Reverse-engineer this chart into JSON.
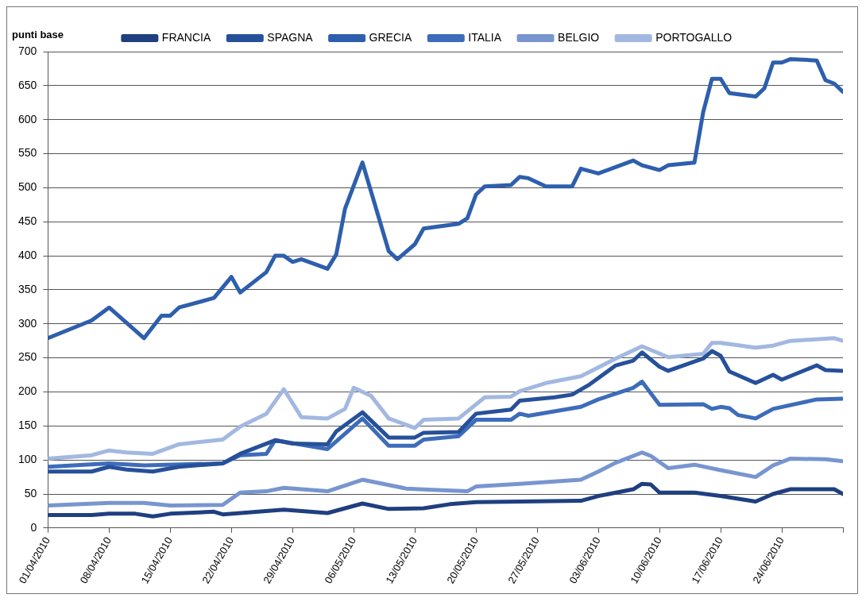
{
  "chart_data": {
    "type": "line",
    "ylabel": "punti base",
    "xlim": [
      "2010-04-01",
      "2010-07-01"
    ],
    "xticks": [
      {
        "value": "2010-04-01",
        "label": "01/04/2010"
      },
      {
        "value": "2010-04-08",
        "label": "08/04/2010"
      },
      {
        "value": "2010-04-15",
        "label": "15/04/2010"
      },
      {
        "value": "2010-04-22",
        "label": "22/04/2010"
      },
      {
        "value": "2010-04-29",
        "label": "29/04/2010"
      },
      {
        "value": "2010-05-06",
        "label": "06/05/2010"
      },
      {
        "value": "2010-05-13",
        "label": "13/05/2010"
      },
      {
        "value": "2010-05-20",
        "label": "20/05/2010"
      },
      {
        "value": "2010-05-27",
        "label": "27/05/2010"
      },
      {
        "value": "2010-06-03",
        "label": "03/06/2010"
      },
      {
        "value": "2010-06-10",
        "label": "10/06/2010"
      },
      {
        "value": "2010-06-17",
        "label": "17/06/2010"
      },
      {
        "value": "2010-06-24",
        "label": "24/06/2010"
      },
      {
        "value": "2010-07-01",
        "label": null
      }
    ],
    "ylim": [
      0,
      700
    ],
    "yticks": [
      0,
      50,
      100,
      150,
      200,
      250,
      300,
      350,
      400,
      450,
      500,
      550,
      600,
      650,
      700
    ],
    "grid": "y",
    "legend": "top",
    "marker": "none",
    "line_style": "solid",
    "series": [
      {
        "name": "FRANCIA",
        "color": "#1f3f7f",
        "x": [
          "2010-04-01",
          "2010-04-06",
          "2010-04-08",
          "2010-04-11",
          "2010-04-13",
          "2010-04-15",
          "2010-04-20",
          "2010-04-21",
          "2010-04-28",
          "2010-05-03",
          "2010-05-07",
          "2010-05-10",
          "2010-05-14",
          "2010-05-17",
          "2010-05-20",
          "2010-06-01",
          "2010-06-03",
          "2010-06-07",
          "2010-06-08",
          "2010-06-09",
          "2010-06-10",
          "2010-06-14",
          "2010-06-17",
          "2010-06-21",
          "2010-06-23",
          "2010-06-25",
          "2010-06-30",
          "2010-07-01"
        ],
        "values": [
          19,
          19,
          21,
          21,
          17,
          21,
          24,
          20,
          27,
          22,
          36,
          28,
          29,
          35,
          38,
          40,
          47,
          57,
          65,
          64,
          52,
          52,
          47,
          39,
          50,
          57,
          57,
          50
        ]
      },
      {
        "name": "SPAGNA",
        "color": "#27509a",
        "x": [
          "2010-04-01",
          "2010-04-06",
          "2010-04-08",
          "2010-04-10",
          "2010-04-13",
          "2010-04-16",
          "2010-04-21",
          "2010-04-23",
          "2010-04-27",
          "2010-04-29",
          "2010-05-03",
          "2010-05-04",
          "2010-05-07",
          "2010-05-10",
          "2010-05-13",
          "2010-05-14",
          "2010-05-18",
          "2010-05-20",
          "2010-05-24",
          "2010-05-25",
          "2010-05-29",
          "2010-05-31",
          "2010-06-02",
          "2010-06-05",
          "2010-06-07",
          "2010-06-08",
          "2010-06-10",
          "2010-06-11",
          "2010-06-15",
          "2010-06-16",
          "2010-06-17",
          "2010-06-18",
          "2010-06-21",
          "2010-06-23",
          "2010-06-24",
          "2010-06-28",
          "2010-06-29",
          "2010-07-01"
        ],
        "values": [
          83,
          83,
          90,
          86,
          83,
          90,
          95,
          109,
          129,
          124,
          123,
          142,
          170,
          133,
          133,
          140,
          141,
          168,
          174,
          187,
          192,
          196,
          211,
          239,
          246,
          258,
          237,
          231,
          249,
          260,
          253,
          230,
          213,
          225,
          218,
          239,
          232,
          231
        ]
      },
      {
        "name": "GRECIA",
        "color": "#2e5fad",
        "x": [
          "2010-04-01",
          "2010-04-06",
          "2010-04-08",
          "2010-04-12",
          "2010-04-14",
          "2010-04-15",
          "2010-04-16",
          "2010-04-20",
          "2010-04-22",
          "2010-04-23",
          "2010-04-26",
          "2010-04-27",
          "2010-04-28",
          "2010-04-29",
          "2010-04-30",
          "2010-05-03",
          "2010-05-04",
          "2010-05-05",
          "2010-05-07",
          "2010-05-10",
          "2010-05-11",
          "2010-05-13",
          "2010-05-14",
          "2010-05-18",
          "2010-05-19",
          "2010-05-20",
          "2010-05-21",
          "2010-05-24",
          "2010-05-25",
          "2010-05-26",
          "2010-05-28",
          "2010-05-31",
          "2010-06-01",
          "2010-06-03",
          "2010-06-07",
          "2010-06-08",
          "2010-06-10",
          "2010-06-11",
          "2010-06-14",
          "2010-06-15",
          "2010-06-16",
          "2010-06-17",
          "2010-06-18",
          "2010-06-21",
          "2010-06-22",
          "2010-06-23",
          "2010-06-24",
          "2010-06-25",
          "2010-06-28",
          "2010-06-29",
          "2010-06-30",
          "2010-07-01"
        ],
        "values": [
          279,
          305,
          324,
          279,
          312,
          312,
          324,
          338,
          369,
          346,
          376,
          400,
          400,
          391,
          395,
          381,
          402,
          469,
          537,
          407,
          395,
          417,
          440,
          447,
          455,
          490,
          502,
          504,
          516,
          514,
          502,
          502,
          528,
          521,
          540,
          533,
          526,
          533,
          537,
          611,
          660,
          660,
          639,
          634,
          646,
          684,
          684,
          689,
          687,
          658,
          653,
          641
        ]
      },
      {
        "name": "ITALIA",
        "color": "#3d6cba",
        "x": [
          "2010-04-01",
          "2010-04-08",
          "2010-04-12",
          "2010-04-21",
          "2010-04-23",
          "2010-04-26",
          "2010-04-27",
          "2010-05-03",
          "2010-05-07",
          "2010-05-10",
          "2010-05-13",
          "2010-05-14",
          "2010-05-18",
          "2010-05-20",
          "2010-05-24",
          "2010-05-25",
          "2010-05-26",
          "2010-06-01",
          "2010-06-03",
          "2010-06-07",
          "2010-06-08",
          "2010-06-10",
          "2010-06-15",
          "2010-06-16",
          "2010-06-17",
          "2010-06-18",
          "2010-06-19",
          "2010-06-21",
          "2010-06-23",
          "2010-06-28",
          "2010-07-01"
        ],
        "values": [
          90,
          95,
          92,
          95,
          107,
          109,
          129,
          116,
          161,
          121,
          121,
          130,
          135,
          159,
          159,
          168,
          165,
          178,
          189,
          206,
          215,
          181,
          182,
          175,
          178,
          176,
          166,
          161,
          175,
          189,
          190
        ]
      },
      {
        "name": "BELGIO",
        "color": "#7895cf",
        "x": [
          "2010-04-01",
          "2010-04-08",
          "2010-04-12",
          "2010-04-15",
          "2010-04-21",
          "2010-04-23",
          "2010-04-26",
          "2010-04-28",
          "2010-05-03",
          "2010-05-07",
          "2010-05-12",
          "2010-05-15",
          "2010-05-19",
          "2010-05-20",
          "2010-05-25",
          "2010-06-01",
          "2010-06-03",
          "2010-06-05",
          "2010-06-08",
          "2010-06-09",
          "2010-06-11",
          "2010-06-14",
          "2010-06-17",
          "2010-06-21",
          "2010-06-23",
          "2010-06-25",
          "2010-06-29",
          "2010-07-01"
        ],
        "values": [
          33,
          37,
          37,
          33,
          34,
          52,
          54,
          59,
          54,
          71,
          58,
          56,
          54,
          61,
          65,
          71,
          83,
          96,
          111,
          106,
          88,
          93,
          85,
          75,
          92,
          102,
          101,
          98
        ]
      },
      {
        "name": "PORTOGALLO",
        "color": "#a3b8e0",
        "x": [
          "2010-04-01",
          "2010-04-06",
          "2010-04-08",
          "2010-04-10",
          "2010-04-13",
          "2010-04-16",
          "2010-04-21",
          "2010-04-23",
          "2010-04-26",
          "2010-04-28",
          "2010-04-30",
          "2010-05-03",
          "2010-05-05",
          "2010-05-06",
          "2010-05-08",
          "2010-05-10",
          "2010-05-13",
          "2010-05-14",
          "2010-05-18",
          "2010-05-21",
          "2010-05-24",
          "2010-05-25",
          "2010-05-28",
          "2010-06-01",
          "2010-06-05",
          "2010-06-08",
          "2010-06-11",
          "2010-06-15",
          "2010-06-16",
          "2010-06-17",
          "2010-06-21",
          "2010-06-23",
          "2010-06-25",
          "2010-06-30",
          "2010-07-01"
        ],
        "values": [
          102,
          107,
          114,
          111,
          109,
          123,
          130,
          149,
          168,
          204,
          163,
          161,
          175,
          206,
          194,
          161,
          147,
          159,
          161,
          192,
          193,
          201,
          213,
          223,
          249,
          267,
          251,
          256,
          272,
          272,
          265,
          268,
          275,
          279,
          275
        ]
      }
    ]
  }
}
